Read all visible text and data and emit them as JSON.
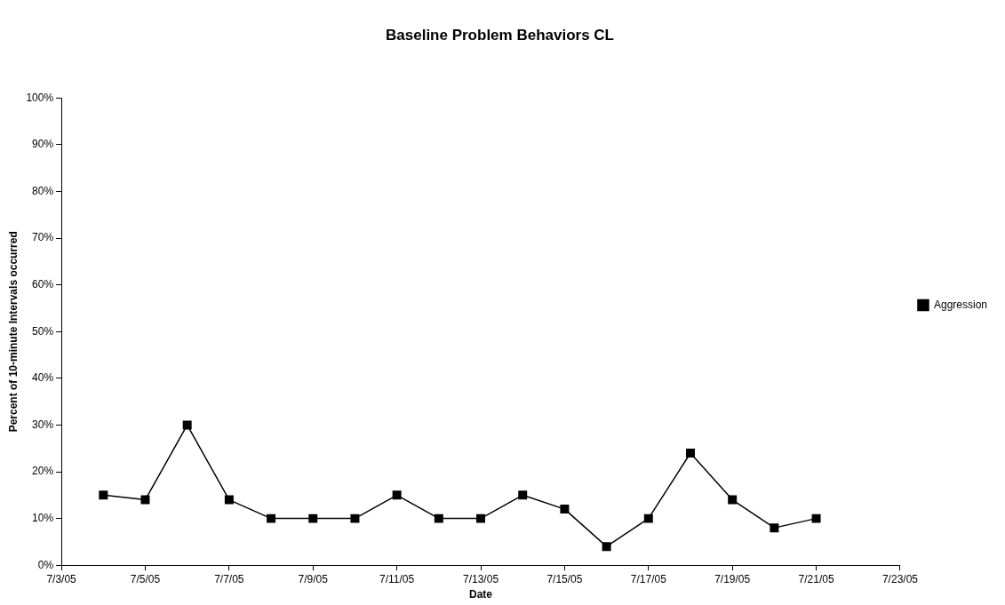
{
  "chart_data": {
    "type": "line",
    "title": "Baseline Problem Behaviors CL",
    "xlabel": "Date",
    "ylabel": "Percent of 10-minute Intervals occurred",
    "x": [
      "--07-04",
      "--07-05",
      "--07-06",
      "--07-07",
      "--07-08",
      "--07-09",
      "--07-10",
      "--07-11",
      "--07-12",
      "--07-13",
      "--07-14",
      "--07-15",
      "--07-16",
      "--07-17",
      "--07-18",
      "--07-19",
      "--07-20",
      "--07-21"
    ],
    "series": [
      {
        "name": "Aggression",
        "color": "#000000",
        "values": [
          15,
          14,
          30,
          14,
          10,
          10,
          10,
          15,
          10,
          10,
          15,
          12,
          4,
          10,
          24,
          14,
          8,
          10
        ]
      }
    ],
    "xlim": [
      "--07-03",
      "--07-23"
    ],
    "xticks": [
      {
        "value": "--07-03",
        "label": "7/3/05"
      },
      {
        "value": "--07-05",
        "label": "7/5/05"
      },
      {
        "value": "--07-07",
        "label": "7/7/05"
      },
      {
        "value": "--07-09",
        "label": "7/9/05"
      },
      {
        "value": "--07-11",
        "label": "7/11/05"
      },
      {
        "value": "--07-13",
        "label": "7/13/05"
      },
      {
        "value": "--07-15",
        "label": "7/15/05"
      },
      {
        "value": "--07-17",
        "label": "7/17/05"
      },
      {
        "value": "--07-19",
        "label": "7/19/05"
      },
      {
        "value": "--07-21",
        "label": "7/21/05"
      },
      {
        "value": "--07-23",
        "label": "7/23/05"
      }
    ],
    "ylim": [
      0,
      100
    ],
    "yticks": [
      {
        "value": 0,
        "label": "0%"
      },
      {
        "value": 10,
        "label": "10%"
      },
      {
        "value": 20,
        "label": "20%"
      },
      {
        "value": 30,
        "label": "30%"
      },
      {
        "value": 40,
        "label": "40%"
      },
      {
        "value": 50,
        "label": "50%"
      },
      {
        "value": 60,
        "label": "60%"
      },
      {
        "value": 70,
        "label": "70%"
      },
      {
        "value": 80,
        "label": "80%"
      },
      {
        "value": 90,
        "label": "90%"
      },
      {
        "value": 100,
        "label": "100%"
      }
    ],
    "grid": false,
    "legend": "right",
    "marker": "square",
    "line_style": "solid"
  }
}
